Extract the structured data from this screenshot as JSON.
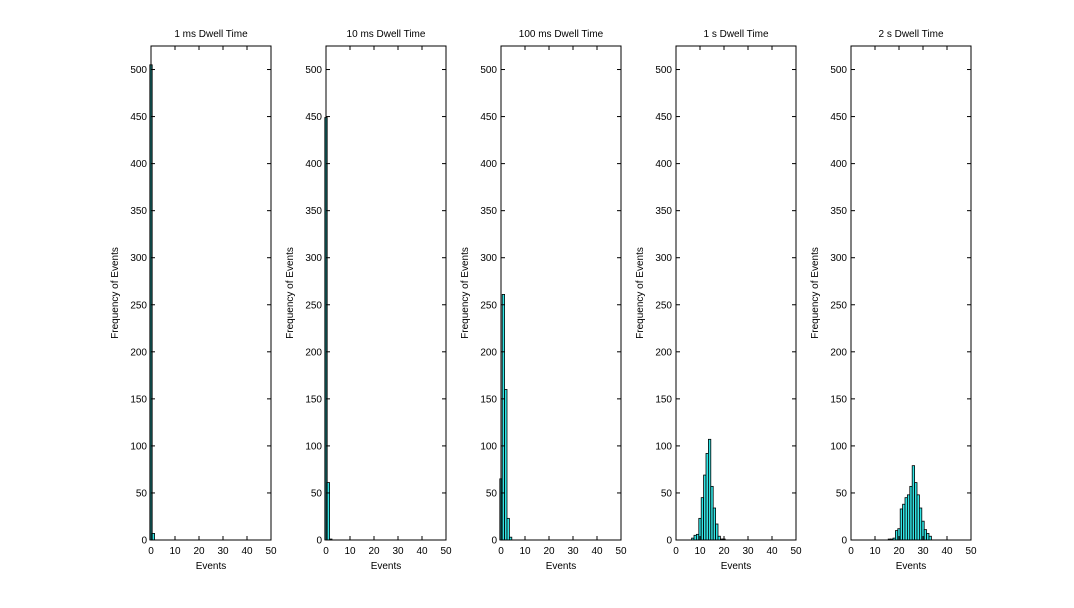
{
  "figure": {
    "background": "#ffffff",
    "bar_fill": "#33e6e6",
    "bar_edge": "#000000"
  },
  "chart_data": [
    {
      "type": "bar",
      "title": "1 ms Dwell Time",
      "xlabel": "Events",
      "ylabel": "Frequency of Events",
      "xlim": [
        -1,
        50
      ],
      "ylim": [
        0,
        525
      ],
      "xticks": [
        0,
        10,
        20,
        30,
        40,
        50
      ],
      "yticks": [
        0,
        50,
        100,
        150,
        200,
        250,
        300,
        350,
        400,
        450,
        500
      ],
      "x": [
        0,
        1
      ],
      "values": [
        505,
        7
      ]
    },
    {
      "type": "bar",
      "title": "10 ms Dwell Time",
      "xlabel": "Events",
      "ylabel": "Frequency of Events",
      "xlim": [
        -1,
        50
      ],
      "ylim": [
        0,
        525
      ],
      "xticks": [
        0,
        10,
        20,
        30,
        40,
        50
      ],
      "yticks": [
        0,
        50,
        100,
        150,
        200,
        250,
        300,
        350,
        400,
        450,
        500
      ],
      "x": [
        0,
        1,
        2
      ],
      "values": [
        449,
        61,
        1
      ]
    },
    {
      "type": "bar",
      "title": "100 ms Dwell Time",
      "xlabel": "Events",
      "ylabel": "Frequency of Events",
      "xlim": [
        -1,
        50
      ],
      "ylim": [
        0,
        525
      ],
      "xticks": [
        0,
        10,
        20,
        30,
        40,
        50
      ],
      "yticks": [
        0,
        50,
        100,
        150,
        200,
        250,
        300,
        350,
        400,
        450,
        500
      ],
      "x": [
        0,
        1,
        2,
        3,
        4
      ],
      "values": [
        65,
        261,
        160,
        23,
        3
      ]
    },
    {
      "type": "bar",
      "title": "1 s Dwell Time",
      "xlabel": "Events",
      "ylabel": "Frequency of Events",
      "xlim": [
        -1,
        50
      ],
      "ylim": [
        0,
        525
      ],
      "xticks": [
        0,
        10,
        20,
        30,
        40,
        50
      ],
      "yticks": [
        0,
        50,
        100,
        150,
        200,
        250,
        300,
        350,
        400,
        450,
        500
      ],
      "x": [
        7,
        8,
        9,
        10,
        11,
        12,
        13,
        14,
        15,
        16,
        17,
        18,
        19,
        20
      ],
      "values": [
        2,
        5,
        6,
        23,
        45,
        69,
        92,
        107,
        57,
        34,
        17,
        4,
        1,
        1
      ]
    },
    {
      "type": "bar",
      "title": "2 s Dwell Time",
      "xlabel": "Events",
      "ylabel": "Frequency of Events",
      "xlim": [
        -1,
        50
      ],
      "ylim": [
        0,
        525
      ],
      "xticks": [
        0,
        10,
        20,
        30,
        40,
        50
      ],
      "yticks": [
        0,
        50,
        100,
        150,
        200,
        250,
        300,
        350,
        400,
        450,
        500
      ],
      "x": [
        16,
        17,
        18,
        19,
        20,
        21,
        22,
        23,
        24,
        25,
        26,
        27,
        28,
        29,
        30,
        31,
        32,
        33
      ],
      "values": [
        1,
        1,
        2,
        10,
        12,
        33,
        38,
        45,
        48,
        57,
        79,
        61,
        48,
        34,
        20,
        11,
        7,
        4
      ]
    }
  ]
}
